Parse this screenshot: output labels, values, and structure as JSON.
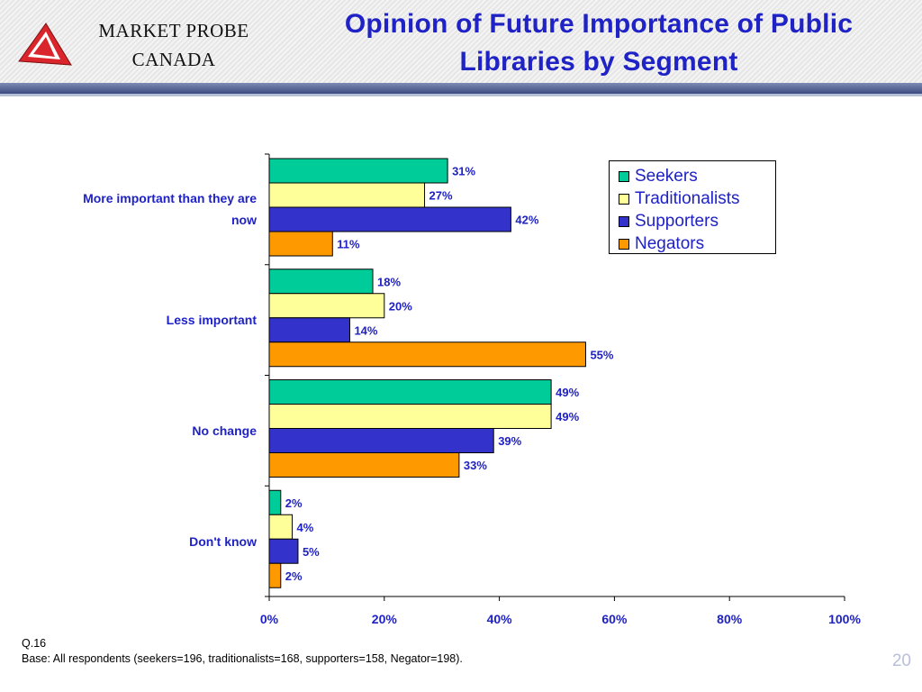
{
  "header": {
    "logo_line1": "MARKET PROBE",
    "logo_line2": "CANADA",
    "title_line1": "Opinion of Future Importance of Public",
    "title_line2": "Libraries by Segment"
  },
  "colors": {
    "title": "#1f22c4",
    "logo_red": "#d9252b",
    "Seekers": "#00cc99",
    "Traditionalists": "#ffff99",
    "Supporters": "#3333cc",
    "Negators": "#ff9900"
  },
  "chart_data": {
    "type": "bar",
    "orientation": "horizontal",
    "categories": [
      "More important than they are now",
      "Less important",
      "No change",
      "Don't know"
    ],
    "series": [
      {
        "name": "Seekers",
        "values": [
          31,
          18,
          49,
          2
        ]
      },
      {
        "name": "Traditionalists",
        "values": [
          27,
          20,
          49,
          4
        ]
      },
      {
        "name": "Supporters",
        "values": [
          42,
          14,
          39,
          5
        ]
      },
      {
        "name": "Negators",
        "values": [
          11,
          55,
          33,
          2
        ]
      }
    ],
    "value_suffix": "%",
    "xlim": [
      0,
      100
    ],
    "x_ticks": [
      "0%",
      "20%",
      "40%",
      "60%",
      "80%",
      "100%"
    ],
    "grid": false,
    "legend_position": "top-right"
  },
  "footnotes": {
    "question": "Q.16",
    "base": "Base: All respondents (seekers=196, traditionalists=168, supporters=158, Negator=198)."
  },
  "slide_number": "20"
}
